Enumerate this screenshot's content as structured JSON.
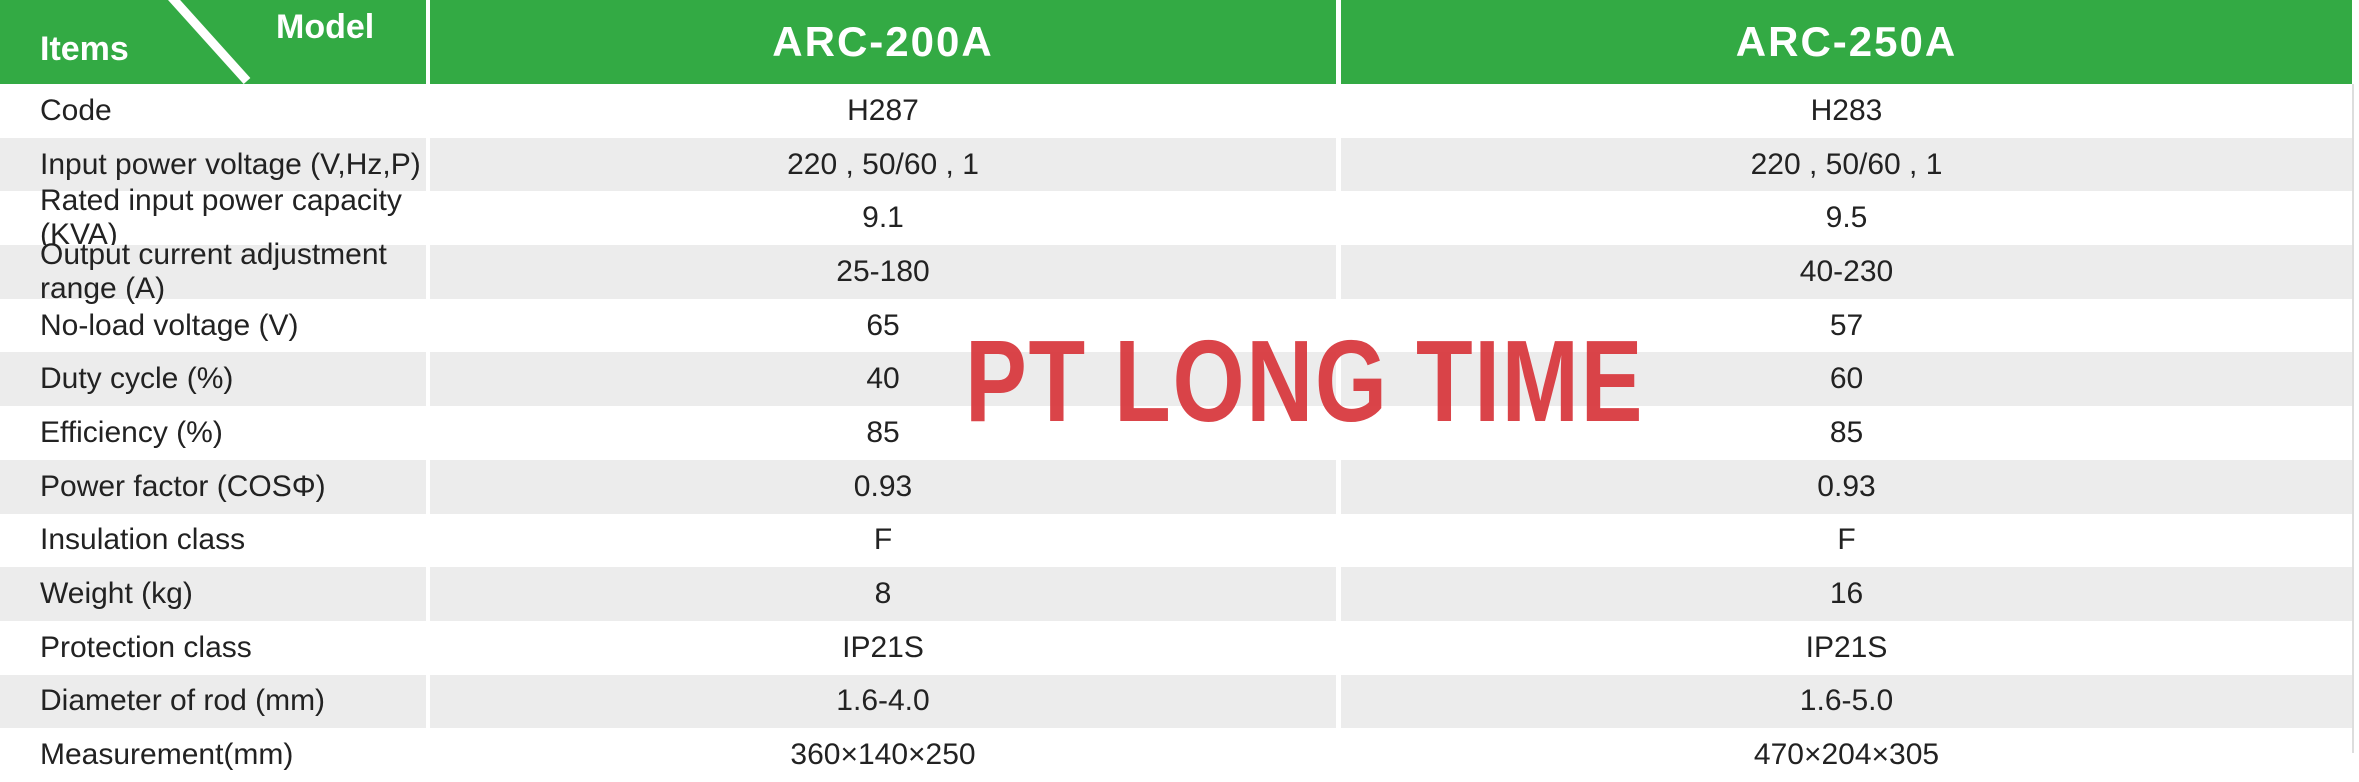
{
  "header": {
    "items_label": "Items",
    "model_label": "Model",
    "models": [
      "ARC-200A",
      "ARC-250A"
    ]
  },
  "rows": [
    {
      "label": "Code",
      "v1": "H287",
      "v2": "H283"
    },
    {
      "label": "Input power voltage (V,Hz,P)",
      "v1": "220 , 50/60 , 1",
      "v2": "220 , 50/60 , 1"
    },
    {
      "label": "Rated input power capacity (KVA)",
      "v1": "9.1",
      "v2": "9.5"
    },
    {
      "label": "Output current adjustment range (A)",
      "v1": "25-180",
      "v2": "40-230"
    },
    {
      "label": "No-load voltage (V)",
      "v1": "65",
      "v2": "57"
    },
    {
      "label": "Duty cycle (%)",
      "v1": "40",
      "v2": "60"
    },
    {
      "label": "Efficiency (%)",
      "v1": "85",
      "v2": "85"
    },
    {
      "label": "Power factor (COSΦ)",
      "v1": "0.93",
      "v2": "0.93"
    },
    {
      "label": "Insulation class",
      "v1": "F",
      "v2": "F"
    },
    {
      "label": "Weight (kg)",
      "v1": "8",
      "v2": "16"
    },
    {
      "label": "Protection class",
      "v1": "IP21S",
      "v2": "IP21S"
    },
    {
      "label": "Diameter of rod (mm)",
      "v1": "1.6-4.0",
      "v2": "1.6-5.0"
    },
    {
      "label": "Measurement(mm)",
      "v1": "360×140×250",
      "v2": "470×204×305"
    }
  ],
  "watermark": "PT LONG TIME",
  "colors": {
    "header": "#33aa44",
    "alt_row": "#ececec",
    "watermark": "#d93a40"
  }
}
